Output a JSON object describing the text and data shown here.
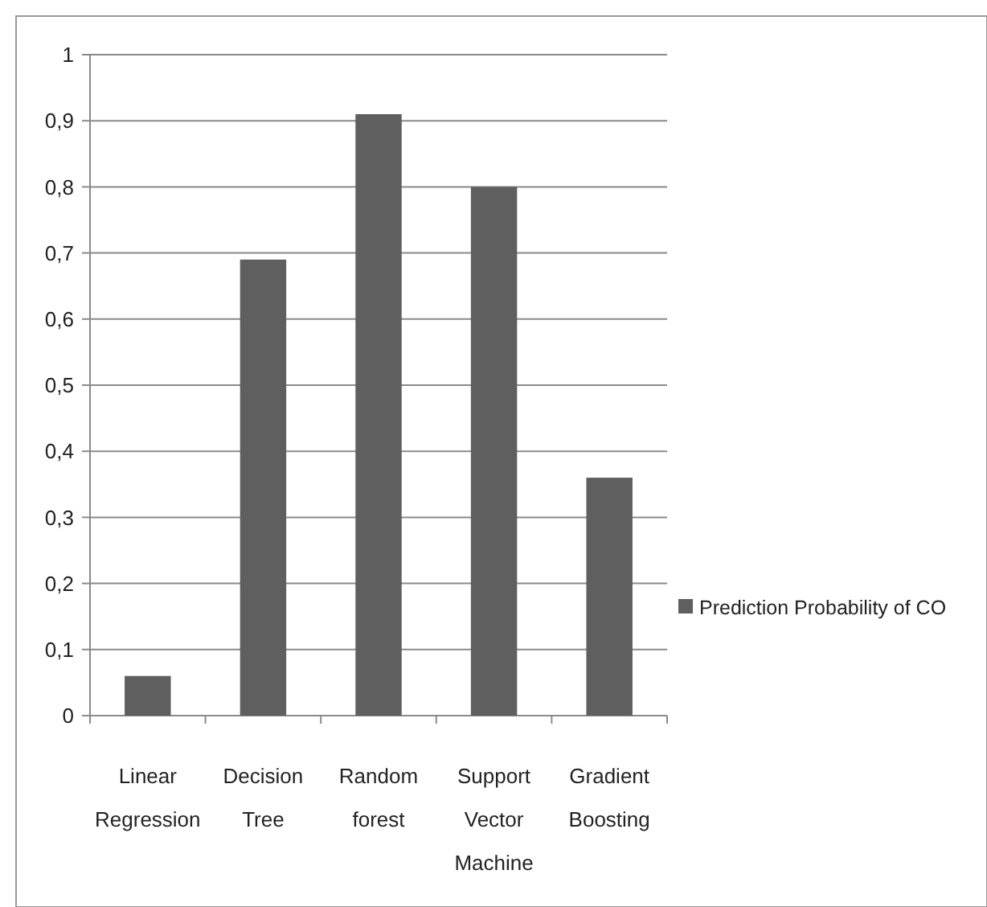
{
  "chart_data": {
    "type": "bar",
    "categories": [
      "Linear Regression",
      "Decision Tree",
      "Random forest",
      "Support Vector Machine",
      "Gradient Boosting"
    ],
    "series": [
      {
        "name": "Prediction Probability of CO",
        "color": "#5f5f5f",
        "values": [
          0.06,
          0.69,
          0.91,
          0.8,
          0.36
        ]
      }
    ],
    "ylim": [
      0,
      1
    ],
    "yticks": [
      0,
      {
        "value": 0.1,
        "label": "0,1"
      },
      {
        "value": 0.2,
        "label": "0,2"
      },
      {
        "value": 0.3,
        "label": "0,3"
      },
      {
        "value": 0.4,
        "label": "0,4"
      },
      {
        "value": 0.5,
        "label": "0,5"
      },
      {
        "value": 0.6,
        "label": "0,6"
      },
      {
        "value": 0.7,
        "label": "0,7"
      },
      {
        "value": 0.8,
        "label": "0,8"
      },
      {
        "value": 0.9,
        "label": "0,9"
      },
      1
    ],
    "grid": "y",
    "legend": "right"
  }
}
